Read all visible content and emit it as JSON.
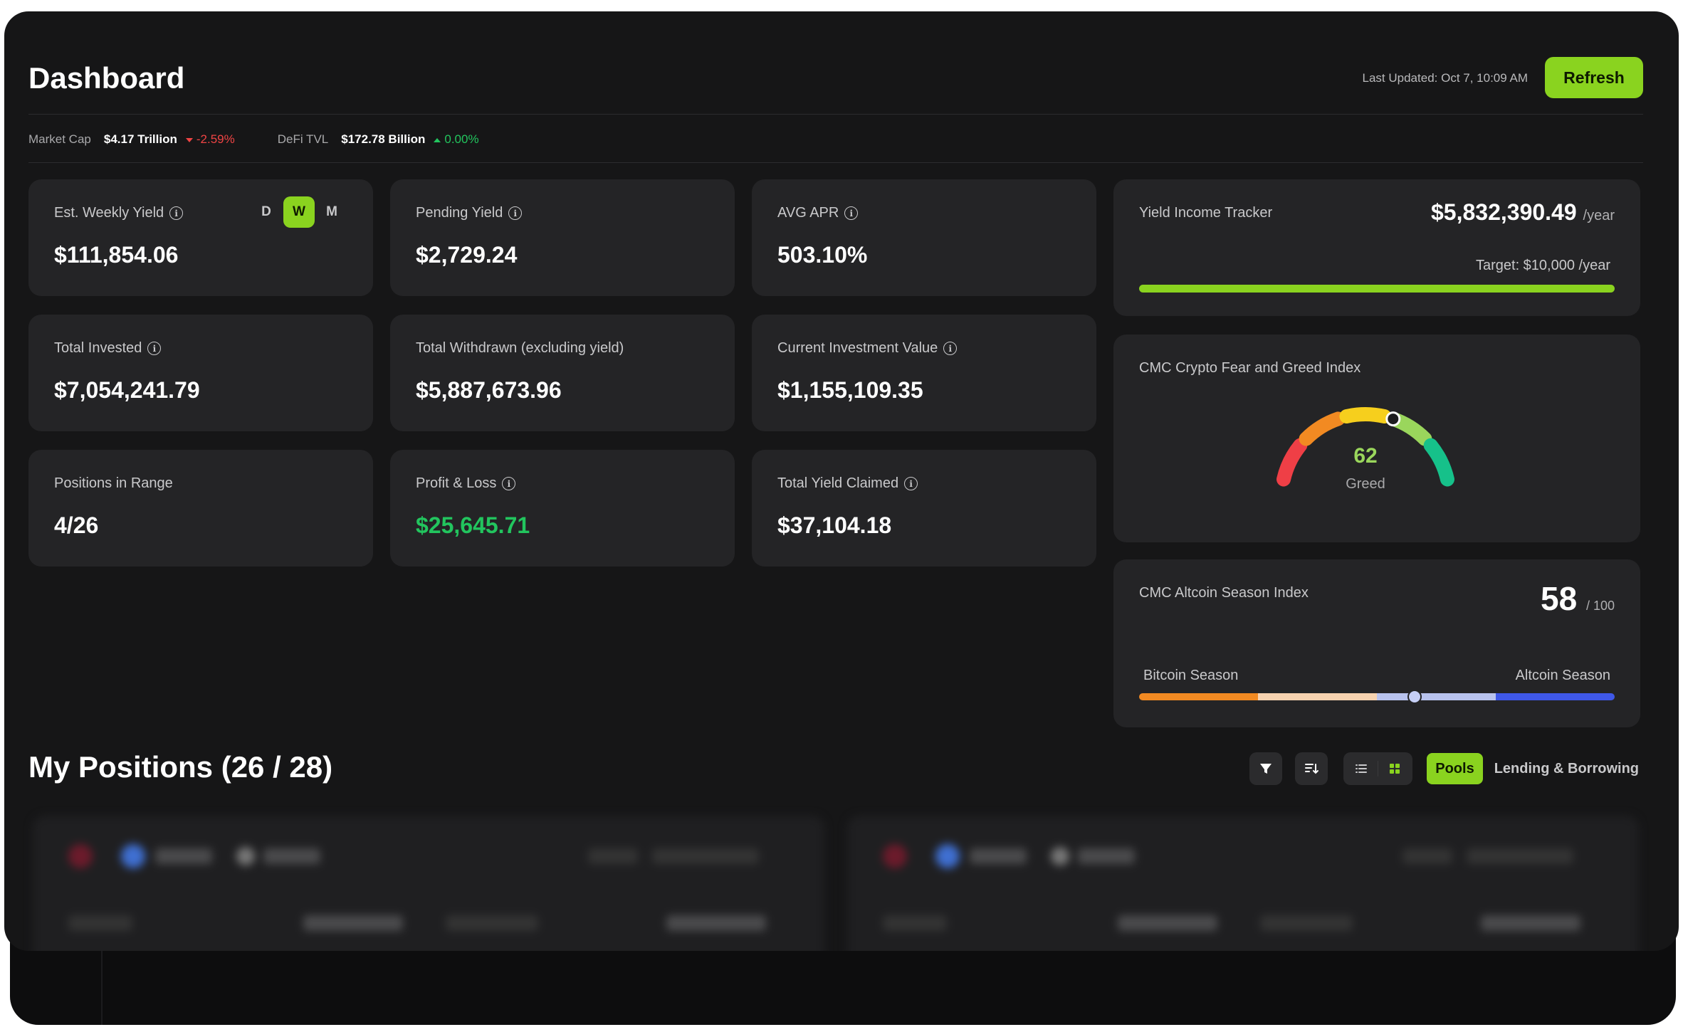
{
  "header": {
    "title": "Dashboard",
    "last_updated": "Last Updated: Oct 7, 10:09 AM",
    "refresh_label": "Refresh"
  },
  "market": {
    "market_cap_label": "Market Cap",
    "market_cap_value": "$4.17 Trillion",
    "market_cap_change": "-2.59%",
    "defi_tvl_label": "DeFi TVL",
    "defi_tvl_value": "$172.78 Billion",
    "defi_tvl_change": "0.00%"
  },
  "stats": {
    "weekly_yield": {
      "label": "Est. Weekly Yield",
      "value": "$111,854.06",
      "periods": [
        "D",
        "W",
        "M"
      ],
      "active_period": "W"
    },
    "pending_yield": {
      "label": "Pending Yield",
      "value": "$2,729.24"
    },
    "avg_apr": {
      "label": "AVG APR",
      "value": "503.10%"
    },
    "total_invested": {
      "label": "Total Invested",
      "value": "$7,054,241.79"
    },
    "total_withdrawn": {
      "label": "Total Withdrawn (excluding yield)",
      "value": "$5,887,673.96"
    },
    "current_value": {
      "label": "Current Investment Value",
      "value": "$1,155,109.35"
    },
    "positions_in_range": {
      "label": "Positions in Range",
      "value": "4/26"
    },
    "profit_loss": {
      "label": "Profit & Loss",
      "value": "$25,645.71"
    },
    "total_yield_claimed": {
      "label": "Total Yield Claimed",
      "value": "$37,104.18"
    }
  },
  "yield_tracker": {
    "title": "Yield Income Tracker",
    "value": "$5,832,390.49",
    "unit": "/year",
    "target": "Target: $10,000 /year",
    "progress": 1.0
  },
  "fear_greed": {
    "title": "CMC Crypto Fear and Greed Index",
    "value": "62",
    "label": "Greed",
    "level": 0.62,
    "colors": [
      "#ef3f46",
      "#f28a22",
      "#f6cf1d",
      "#9ad65c",
      "#16c18a"
    ]
  },
  "altcoin": {
    "title": "CMC Altcoin Season Index",
    "value": "58",
    "max": "/ 100",
    "left_label": "Bitcoin Season",
    "right_label": "Altcoin Season",
    "level": 0.58
  },
  "positions": {
    "title": "My Positions (26 / 28)",
    "pools_label": "Pools",
    "lending_label": "Lending & Borrowing"
  },
  "colors": {
    "accent": "#8ad31f",
    "positive": "#22c55e",
    "negative": "#ef4444"
  }
}
